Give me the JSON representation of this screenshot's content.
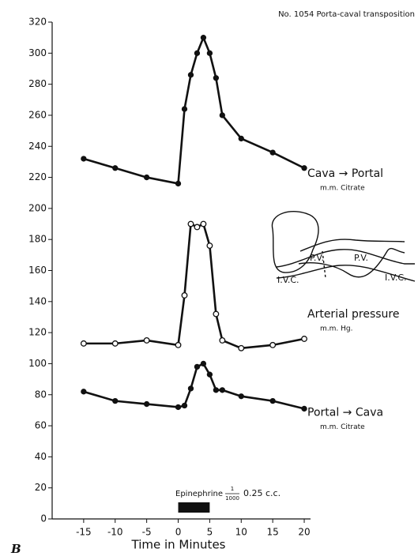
{
  "chart_data": {
    "type": "line",
    "title": "No. 1054 Porta-caval transposition",
    "x_label": "Time in Minutes",
    "figure_letter": "B",
    "x": [
      -15,
      -10,
      -5,
      0,
      1,
      2,
      3,
      4,
      5,
      6,
      7,
      10,
      15,
      20
    ],
    "series": [
      {
        "name": "Cava → Portal",
        "unit": "m.m. Citrate",
        "marker": "filled",
        "color": "#111111",
        "values": [
          232,
          226,
          220,
          216,
          264,
          286,
          300,
          310,
          300,
          284,
          260,
          245,
          236,
          226
        ]
      },
      {
        "name": "Arterial pressure",
        "unit": "m.m. Hg.",
        "marker": "open",
        "color": "#111111",
        "values": [
          113,
          113,
          115,
          112,
          144,
          190,
          188,
          190,
          176,
          132,
          115,
          110,
          112,
          116
        ]
      },
      {
        "name": "Portal → Cava",
        "unit": "m.m. Citrate",
        "marker": "filled",
        "color": "#111111",
        "values": [
          82,
          76,
          74,
          72,
          73,
          84,
          98,
          100,
          93,
          83,
          83,
          79,
          76,
          71
        ]
      }
    ],
    "injection": {
      "label": "Epinephrine",
      "numerator": "1",
      "denominator": "1000",
      "dose": "0.25 c.c.",
      "interval": [
        0,
        5
      ]
    },
    "diagram_labels": [
      "P.V.",
      "P.V.",
      "I.V.C.",
      "I.V.C."
    ],
    "xlim": [
      -20,
      21
    ],
    "ylim": [
      0,
      320
    ],
    "xticks": [
      -15,
      -10,
      -5,
      0,
      5,
      10,
      15,
      20
    ],
    "yticks": [
      0,
      20,
      40,
      60,
      80,
      100,
      120,
      140,
      160,
      180,
      200,
      220,
      240,
      260,
      280,
      300,
      320
    ]
  }
}
